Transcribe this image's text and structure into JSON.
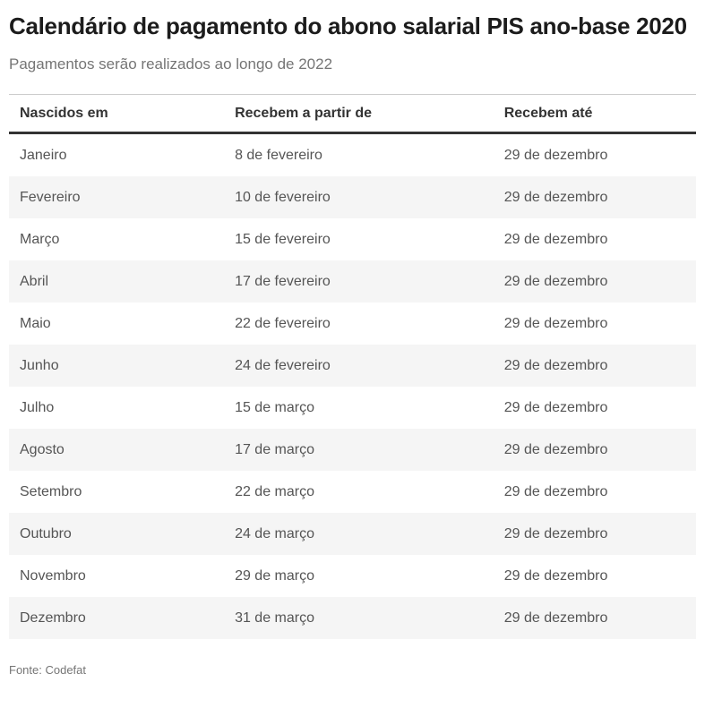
{
  "chart_data": {
    "type": "table",
    "title": "Calendário de pagamento do abono salarial PIS ano-base 2020",
    "subtitle": "Pagamentos serão realizados ao longo de 2022",
    "columns": [
      "Nascidos em",
      "Recebem a partir de",
      "Recebem até"
    ],
    "rows": [
      [
        "Janeiro",
        "8 de fevereiro",
        "29 de dezembro"
      ],
      [
        "Fevereiro",
        "10 de fevereiro",
        "29 de dezembro"
      ],
      [
        "Março",
        "15 de fevereiro",
        "29 de dezembro"
      ],
      [
        "Abril",
        "17 de fevereiro",
        "29 de dezembro"
      ],
      [
        "Maio",
        "22 de fevereiro",
        "29 de dezembro"
      ],
      [
        "Junho",
        "24 de fevereiro",
        "29 de dezembro"
      ],
      [
        "Julho",
        "15 de março",
        "29 de dezembro"
      ],
      [
        "Agosto",
        "17 de março",
        "29 de dezembro"
      ],
      [
        "Setembro",
        "22 de março",
        "29 de dezembro"
      ],
      [
        "Outubro",
        "24 de março",
        "29 de dezembro"
      ],
      [
        "Novembro",
        "29 de março",
        "29 de dezembro"
      ],
      [
        "Dezembro",
        "31 de março",
        "29 de dezembro"
      ]
    ],
    "source": "Fonte: Codefat",
    "layout_hints": {
      "zebra_striping": "even rows shaded",
      "grid": "off",
      "header_rule": "thick dark bottom border",
      "top_rule": "thin light border"
    },
    "colors": {
      "stripe_background": "#f5f5f5",
      "header_rule": "#333333",
      "top_rule": "#cccccc",
      "title_text": "#1c1c1c",
      "header_text": "#333333",
      "body_text": "#555555",
      "muted_text": "#757575",
      "page_background": "#ffffff"
    }
  }
}
